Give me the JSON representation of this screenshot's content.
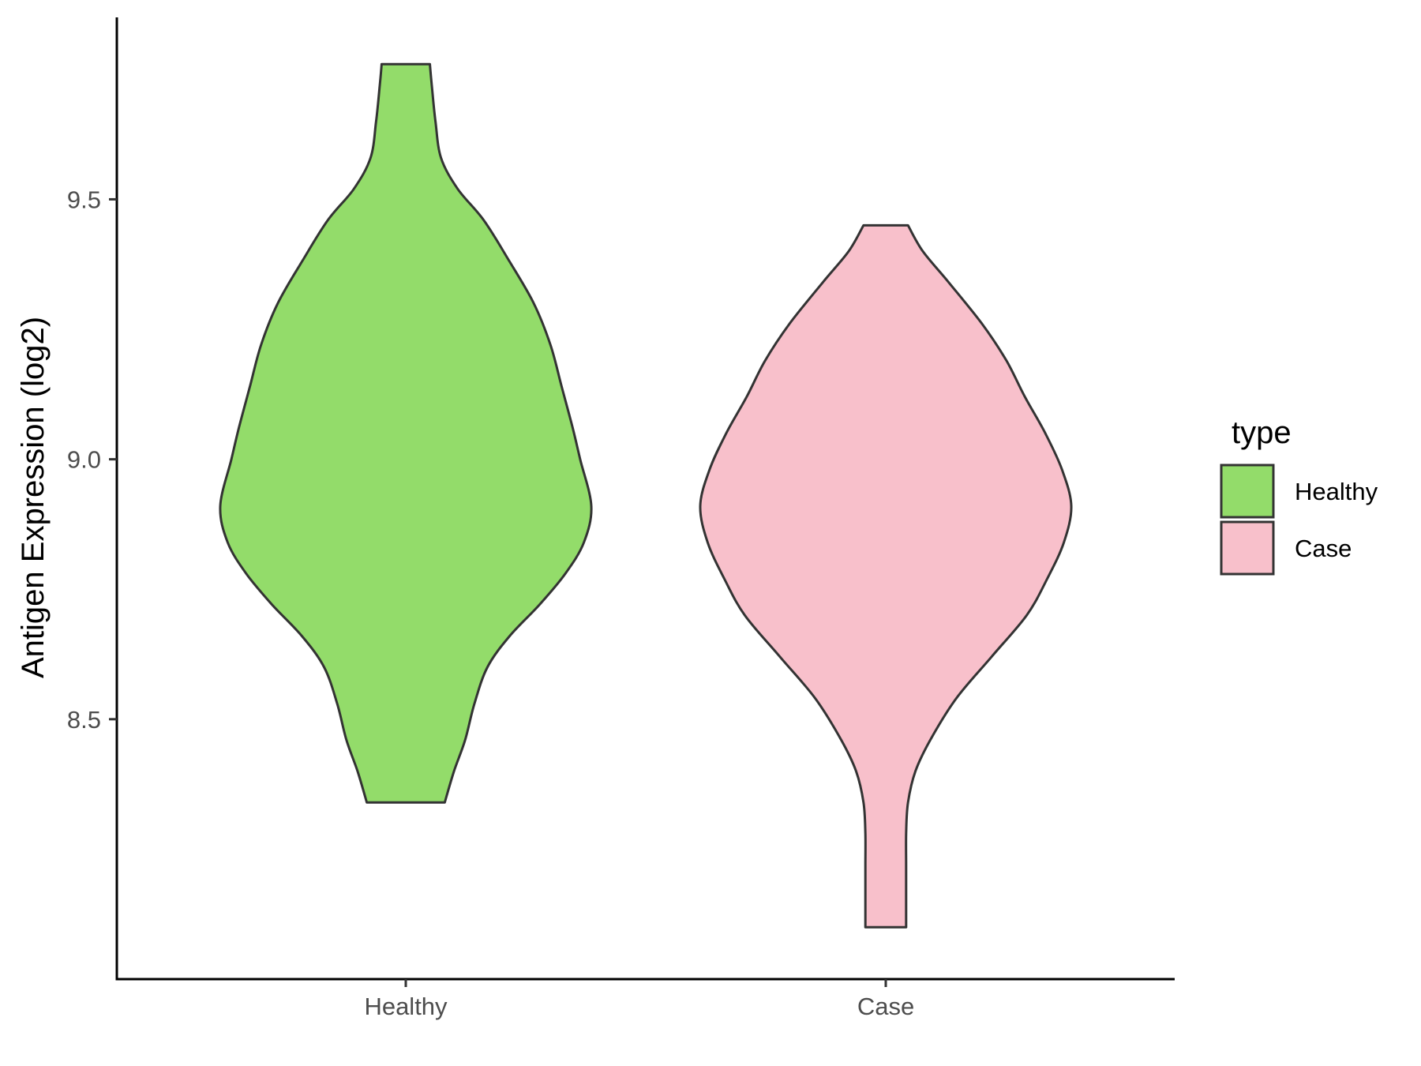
{
  "chart_data": {
    "type": "violin",
    "ylabel": "Antigen Expression (log2)",
    "xlabel": "",
    "categories": [
      "Healthy",
      "Case"
    ],
    "ylim": [
      8.0,
      9.85
    ],
    "yticks": [
      8.5,
      9.0,
      9.5
    ],
    "ytick_labels": [
      "8.5",
      "9.0",
      "9.5"
    ],
    "grid": false,
    "legend": {
      "title": "type",
      "placement": "right"
    },
    "series": [
      {
        "name": "Healthy",
        "color": "#93dc6a",
        "range": [
          8.34,
          9.76
        ],
        "density": [
          {
            "y": 9.76,
            "w": 0.13
          },
          {
            "y": 9.72,
            "w": 0.14
          },
          {
            "y": 9.65,
            "w": 0.16
          },
          {
            "y": 9.58,
            "w": 0.19
          },
          {
            "y": 9.52,
            "w": 0.28
          },
          {
            "y": 9.46,
            "w": 0.42
          },
          {
            "y": 9.38,
            "w": 0.56
          },
          {
            "y": 9.3,
            "w": 0.69
          },
          {
            "y": 9.22,
            "w": 0.78
          },
          {
            "y": 9.14,
            "w": 0.84
          },
          {
            "y": 9.06,
            "w": 0.9
          },
          {
            "y": 9.0,
            "w": 0.94
          },
          {
            "y": 8.91,
            "w": 1.0
          },
          {
            "y": 8.84,
            "w": 0.96
          },
          {
            "y": 8.78,
            "w": 0.86
          },
          {
            "y": 8.72,
            "w": 0.72
          },
          {
            "y": 8.66,
            "w": 0.56
          },
          {
            "y": 8.6,
            "w": 0.44
          },
          {
            "y": 8.53,
            "w": 0.37
          },
          {
            "y": 8.46,
            "w": 0.32
          },
          {
            "y": 8.4,
            "w": 0.26
          },
          {
            "y": 8.34,
            "w": 0.21
          }
        ]
      },
      {
        "name": "Case",
        "color": "#f8c0cb",
        "range": [
          8.1,
          9.45
        ],
        "density": [
          {
            "y": 9.45,
            "w": 0.12
          },
          {
            "y": 9.4,
            "w": 0.2
          },
          {
            "y": 9.34,
            "w": 0.34
          },
          {
            "y": 9.26,
            "w": 0.52
          },
          {
            "y": 9.19,
            "w": 0.65
          },
          {
            "y": 9.12,
            "w": 0.75
          },
          {
            "y": 9.05,
            "w": 0.86
          },
          {
            "y": 8.98,
            "w": 0.95
          },
          {
            "y": 8.91,
            "w": 1.0
          },
          {
            "y": 8.84,
            "w": 0.96
          },
          {
            "y": 8.77,
            "w": 0.87
          },
          {
            "y": 8.7,
            "w": 0.76
          },
          {
            "y": 8.62,
            "w": 0.57
          },
          {
            "y": 8.54,
            "w": 0.38
          },
          {
            "y": 8.46,
            "w": 0.24
          },
          {
            "y": 8.4,
            "w": 0.16
          },
          {
            "y": 8.34,
            "w": 0.12
          },
          {
            "y": 8.28,
            "w": 0.11
          },
          {
            "y": 8.22,
            "w": 0.11
          },
          {
            "y": 8.16,
            "w": 0.11
          },
          {
            "y": 8.1,
            "w": 0.11
          }
        ]
      }
    ]
  }
}
